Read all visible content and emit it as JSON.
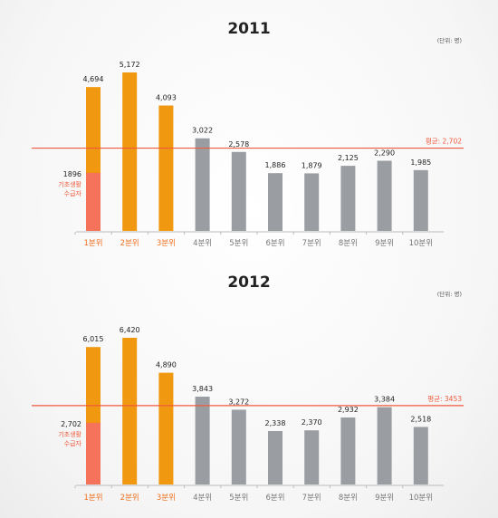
{
  "colors": {
    "orange": "#f0980f",
    "salmon": "#f4735a",
    "gray": "#9a9ea3",
    "avg_line": "#f05a3c",
    "cat_highlight": "#f07020",
    "cat_normal": "#777777"
  },
  "chart_data": [
    {
      "type": "bar",
      "title": "2011",
      "unit": "(단위: 명)",
      "categories": [
        "1분위",
        "2분위",
        "3분위",
        "4분위",
        "5분위",
        "6분위",
        "7분위",
        "8분위",
        "9분위",
        "10분위"
      ],
      "highlight_categories": [
        0,
        1,
        2
      ],
      "values": [
        4694,
        5172,
        4093,
        3022,
        2578,
        1886,
        1879,
        2125,
        2290,
        1985
      ],
      "value_labels": [
        "4,694",
        "5,172",
        "4,093",
        "3,022",
        "2,578",
        "1,886",
        "1,879",
        "2,125",
        "2,290",
        "1,985"
      ],
      "sub_value": 1896,
      "sub_value_label": "1896",
      "sub_label_lines": [
        "기초생활",
        "수급자"
      ],
      "average": 2702,
      "average_label": "평균: 2,702",
      "ylim": [
        0,
        5172
      ]
    },
    {
      "type": "bar",
      "title": "2012",
      "unit": "(단위: 명)",
      "categories": [
        "1분위",
        "2분위",
        "3분위",
        "4분위",
        "5분위",
        "6분위",
        "7분위",
        "8분위",
        "9분위",
        "10분위"
      ],
      "highlight_categories": [
        0,
        1,
        2
      ],
      "values": [
        6015,
        6420,
        4890,
        3843,
        3272,
        2338,
        2370,
        2932,
        3384,
        2518
      ],
      "value_labels": [
        "6,015",
        "6,420",
        "4,890",
        "3,843",
        "3,272",
        "2,338",
        "2,370",
        "2,932",
        "3,384",
        "2,518"
      ],
      "sub_value": 2702,
      "sub_value_label": "2,702",
      "sub_label_lines": [
        "기초생활",
        "수급자"
      ],
      "average": 3453,
      "average_label": "평균: 3453",
      "ylim": [
        0,
        6420
      ]
    }
  ]
}
